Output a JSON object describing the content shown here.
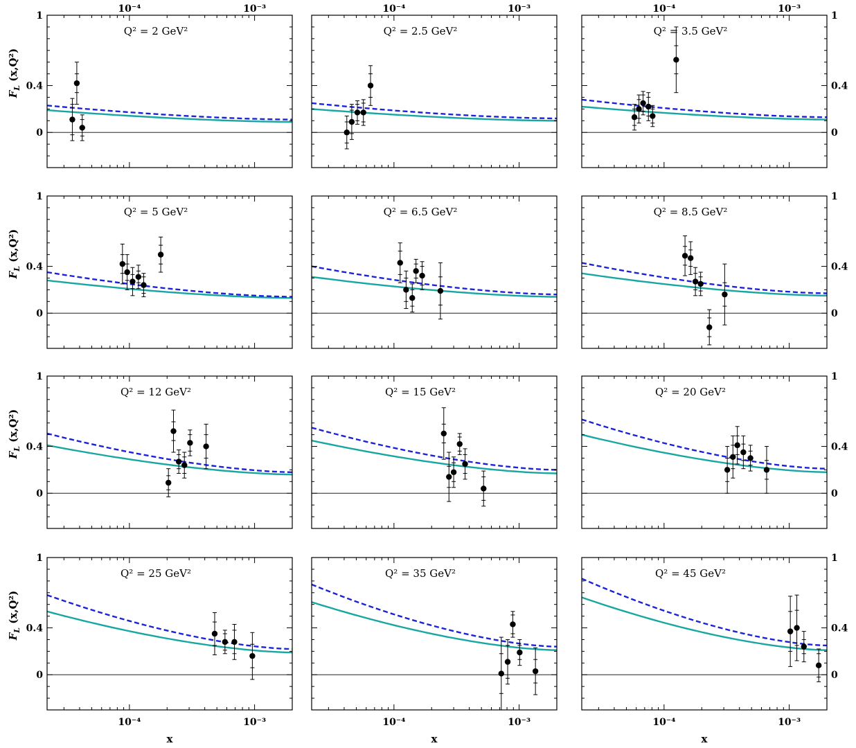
{
  "chart_data": {
    "type": "scatter",
    "y_axis_label": "F",
    "y_axis_label_sub": "L",
    "y_axis_label_rest": " (x,Q²)",
    "x_axis_label": "x",
    "x_scale": "log",
    "xlim": [
      2.2e-05,
      0.002
    ],
    "ylim": [
      -0.3,
      1.0
    ],
    "y_ticks": [
      {
        "value": 0,
        "label": "0"
      },
      {
        "value": 0.4,
        "label": "0.4"
      },
      {
        "value": 1,
        "label": "1"
      }
    ],
    "x_ticks": [
      {
        "value": 0.0001,
        "label": "10⁻⁴"
      },
      {
        "value": 0.001,
        "label": "10⁻³"
      }
    ],
    "series_colors": {
      "dashed": "#1c22d8",
      "solid": "#17a6a2",
      "points": "#000000"
    },
    "panels": [
      {
        "title": "Q² = 2 GeV²",
        "dashed": [
          0.23,
          0.11
        ],
        "solid": [
          0.19,
          0.09
        ],
        "points": [
          {
            "x": 3.5e-05,
            "y": 0.11,
            "err_in": 0.13,
            "err_out": 0.18
          },
          {
            "x": 3.8e-05,
            "y": 0.42,
            "err_in": 0.08,
            "err_out": 0.18
          },
          {
            "x": 4.2e-05,
            "y": 0.04,
            "err_in": 0.07,
            "err_out": 0.11
          }
        ]
      },
      {
        "title": "Q² = 2.5 GeV²",
        "dashed": [
          0.25,
          0.12
        ],
        "solid": [
          0.2,
          0.1
        ],
        "points": [
          {
            "x": 4.2e-05,
            "y": 0.0,
            "err_in": 0.09,
            "err_out": 0.14
          },
          {
            "x": 4.6e-05,
            "y": 0.09,
            "err_in": 0.1,
            "err_out": 0.15
          },
          {
            "x": 5.1e-05,
            "y": 0.17,
            "err_in": 0.07,
            "err_out": 0.1
          },
          {
            "x": 5.7e-05,
            "y": 0.17,
            "err_in": 0.08,
            "err_out": 0.11
          },
          {
            "x": 6.5e-05,
            "y": 0.4,
            "err_in": 0.1,
            "err_out": 0.17
          }
        ]
      },
      {
        "title": "Q² = 3.5 GeV²",
        "dashed": [
          0.28,
          0.13
        ],
        "solid": [
          0.22,
          0.11
        ],
        "points": [
          {
            "x": 5.8e-05,
            "y": 0.13,
            "err_in": 0.07,
            "err_out": 0.11
          },
          {
            "x": 6.3e-05,
            "y": 0.2,
            "err_in": 0.08,
            "err_out": 0.12
          },
          {
            "x": 6.8e-05,
            "y": 0.25,
            "err_in": 0.07,
            "err_out": 0.1
          },
          {
            "x": 7.5e-05,
            "y": 0.22,
            "err_in": 0.08,
            "err_out": 0.12
          },
          {
            "x": 8.1e-05,
            "y": 0.14,
            "err_in": 0.06,
            "err_out": 0.09
          },
          {
            "x": 0.000125,
            "y": 0.62,
            "err_in": 0.12,
            "err_out": 0.28
          }
        ]
      },
      {
        "title": "Q² = 5 GeV²",
        "dashed": [
          0.35,
          0.14
        ],
        "solid": [
          0.28,
          0.13
        ],
        "points": [
          {
            "x": 8.8e-05,
            "y": 0.42,
            "err_in": 0.08,
            "err_out": 0.17
          },
          {
            "x": 9.6e-05,
            "y": 0.35,
            "err_in": 0.07,
            "err_out": 0.15
          },
          {
            "x": 0.000106,
            "y": 0.27,
            "err_in": 0.06,
            "err_out": 0.12
          },
          {
            "x": 0.000118,
            "y": 0.31,
            "err_in": 0.05,
            "err_out": 0.1
          },
          {
            "x": 0.00013,
            "y": 0.24,
            "err_in": 0.07,
            "err_out": 0.1
          },
          {
            "x": 0.000178,
            "y": 0.5,
            "err_in": 0.08,
            "err_out": 0.15
          }
        ]
      },
      {
        "title": "Q² = 6.5 GeV²",
        "dashed": [
          0.4,
          0.16
        ],
        "solid": [
          0.31,
          0.14
        ],
        "points": [
          {
            "x": 0.000112,
            "y": 0.43,
            "err_in": 0.1,
            "err_out": 0.17
          },
          {
            "x": 0.000125,
            "y": 0.2,
            "err_in": 0.1,
            "err_out": 0.16
          },
          {
            "x": 0.00014,
            "y": 0.13,
            "err_in": 0.07,
            "err_out": 0.12
          },
          {
            "x": 0.00015,
            "y": 0.36,
            "err_in": 0.06,
            "err_out": 0.1
          },
          {
            "x": 0.000168,
            "y": 0.32,
            "err_in": 0.08,
            "err_out": 0.12
          },
          {
            "x": 0.000235,
            "y": 0.19,
            "err_in": 0.12,
            "err_out": 0.24
          }
        ]
      },
      {
        "title": "Q² = 8.5 GeV²",
        "dashed": [
          0.43,
          0.17
        ],
        "solid": [
          0.34,
          0.15
        ],
        "points": [
          {
            "x": 0.000147,
            "y": 0.49,
            "err_in": 0.08,
            "err_out": 0.17
          },
          {
            "x": 0.000163,
            "y": 0.47,
            "err_in": 0.07,
            "err_out": 0.14
          },
          {
            "x": 0.000178,
            "y": 0.27,
            "err_in": 0.07,
            "err_out": 0.12
          },
          {
            "x": 0.000196,
            "y": 0.25,
            "err_in": 0.06,
            "err_out": 0.1
          },
          {
            "x": 0.00023,
            "y": -0.12,
            "err_in": 0.08,
            "err_out": 0.15
          },
          {
            "x": 0.000305,
            "y": 0.16,
            "err_in": 0.1,
            "err_out": 0.26
          }
        ]
      },
      {
        "title": "Q² = 12 GeV²",
        "dashed": [
          0.51,
          0.18
        ],
        "solid": [
          0.41,
          0.16
        ],
        "points": [
          {
            "x": 0.000205,
            "y": 0.09,
            "err_in": 0.06,
            "err_out": 0.12
          },
          {
            "x": 0.000225,
            "y": 0.53,
            "err_in": 0.08,
            "err_out": 0.18
          },
          {
            "x": 0.000248,
            "y": 0.27,
            "err_in": 0.06,
            "err_out": 0.1
          },
          {
            "x": 0.000275,
            "y": 0.24,
            "err_in": 0.07,
            "err_out": 0.11
          },
          {
            "x": 0.000305,
            "y": 0.43,
            "err_in": 0.07,
            "err_out": 0.11
          },
          {
            "x": 0.00041,
            "y": 0.4,
            "err_in": 0.1,
            "err_out": 0.19
          }
        ]
      },
      {
        "title": "Q² = 15 GeV²",
        "dashed": [
          0.56,
          0.2
        ],
        "solid": [
          0.45,
          0.17
        ],
        "points": [
          {
            "x": 0.00025,
            "y": 0.51,
            "err_in": 0.08,
            "err_out": 0.22
          },
          {
            "x": 0.000275,
            "y": 0.14,
            "err_in": 0.09,
            "err_out": 0.21
          },
          {
            "x": 0.0003,
            "y": 0.18,
            "err_in": 0.08,
            "err_out": 0.13
          },
          {
            "x": 0.000335,
            "y": 0.42,
            "err_in": 0.06,
            "err_out": 0.09
          },
          {
            "x": 0.00037,
            "y": 0.25,
            "err_in": 0.08,
            "err_out": 0.13
          },
          {
            "x": 0.00052,
            "y": 0.04,
            "err_in": 0.1,
            "err_out": 0.15
          }
        ]
      },
      {
        "title": "Q² = 20 GeV²",
        "dashed": [
          0.63,
          0.21
        ],
        "solid": [
          0.5,
          0.18
        ],
        "points": [
          {
            "x": 0.00032,
            "y": 0.2,
            "err_in": 0.1,
            "err_out": 0.2
          },
          {
            "x": 0.000355,
            "y": 0.31,
            "err_in": 0.1,
            "err_out": 0.18
          },
          {
            "x": 0.000385,
            "y": 0.41,
            "err_in": 0.08,
            "err_out": 0.16
          },
          {
            "x": 0.00043,
            "y": 0.35,
            "err_in": 0.07,
            "err_out": 0.14
          },
          {
            "x": 0.00049,
            "y": 0.3,
            "err_in": 0.06,
            "err_out": 0.11
          },
          {
            "x": 0.00066,
            "y": 0.2,
            "err_in": 0.08,
            "err_out": 0.2
          }
        ]
      },
      {
        "title": "Q² = 25 GeV²",
        "dashed": [
          0.68,
          0.22
        ],
        "solid": [
          0.54,
          0.19
        ],
        "points": [
          {
            "x": 0.00048,
            "y": 0.35,
            "err_in": 0.1,
            "err_out": 0.18
          },
          {
            "x": 0.00058,
            "y": 0.28,
            "err_in": 0.07,
            "err_out": 0.1
          },
          {
            "x": 0.00069,
            "y": 0.28,
            "err_in": 0.1,
            "err_out": 0.15
          },
          {
            "x": 0.00096,
            "y": 0.16,
            "err_in": 0.1,
            "err_out": 0.2
          }
        ]
      },
      {
        "title": "Q² = 35 GeV²",
        "dashed": [
          0.77,
          0.24
        ],
        "solid": [
          0.62,
          0.21
        ],
        "points": [
          {
            "x": 0.00072,
            "y": 0.01,
            "err_in": 0.17,
            "err_out": 0.31
          },
          {
            "x": 0.00081,
            "y": 0.11,
            "err_in": 0.14,
            "err_out": 0.19
          },
          {
            "x": 0.00089,
            "y": 0.43,
            "err_in": 0.08,
            "err_out": 0.11
          },
          {
            "x": 0.00101,
            "y": 0.19,
            "err_in": 0.06,
            "err_out": 0.11
          },
          {
            "x": 0.00135,
            "y": 0.03,
            "err_in": 0.1,
            "err_out": 0.2
          }
        ]
      },
      {
        "title": "Q² = 45 GeV²",
        "dashed": [
          0.82,
          0.25
        ],
        "solid": [
          0.66,
          0.21
        ],
        "points": [
          {
            "x": 0.00102,
            "y": 0.37,
            "err_in": 0.17,
            "err_out": 0.3
          },
          {
            "x": 0.00115,
            "y": 0.4,
            "err_in": 0.15,
            "err_out": 0.28
          },
          {
            "x": 0.00131,
            "y": 0.24,
            "err_in": 0.06,
            "err_out": 0.13
          },
          {
            "x": 0.00172,
            "y": 0.08,
            "err_in": 0.1,
            "err_out": 0.14
          }
        ]
      }
    ]
  }
}
